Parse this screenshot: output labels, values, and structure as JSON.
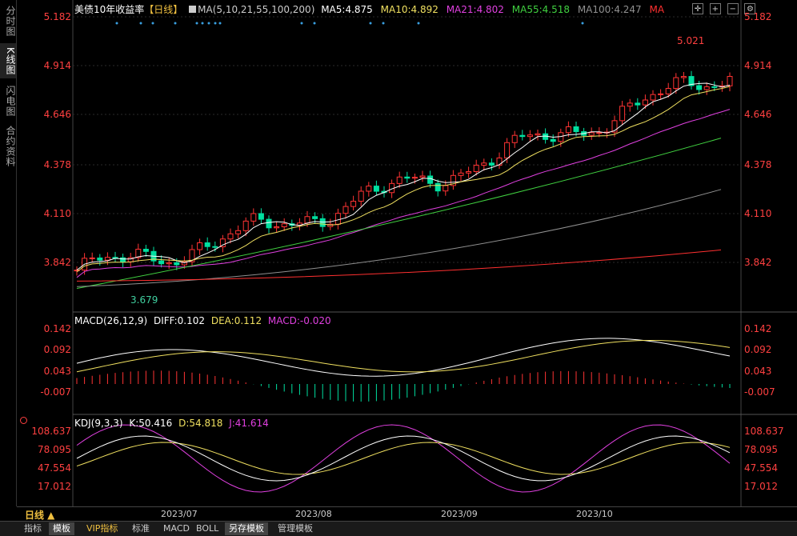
{
  "sidebar": {
    "items": [
      {
        "label": "分时图",
        "active": false
      },
      {
        "label": "K线图",
        "active": true
      },
      {
        "label": "闪电图",
        "active": false
      },
      {
        "label": "合约资料",
        "active": false
      }
    ]
  },
  "header": {
    "title": "美债10年收益率",
    "period_tag": "【日线】",
    "ma_params": "MA(5,10,21,55,100,200)",
    "ma5": "MA5:4.875",
    "ma10": "MA10:4.892",
    "ma21": "MA21:4.802",
    "ma55": "MA55:4.518",
    "ma100": "MA100:4.247",
    "ma200": "MA",
    "tool_icons": [
      "cross-icon",
      "zoom-in-icon",
      "zoom-out-icon",
      "settings-icon"
    ]
  },
  "price_axis": {
    "ticks_left": [
      "5.182",
      "4.914",
      "4.646",
      "4.378",
      "4.110",
      "3.842"
    ],
    "ticks_right": [
      "5.182",
      "4.914",
      "4.646",
      "4.378",
      "4.110",
      "3.842"
    ],
    "high_label": "5.021",
    "low_label": "3.679"
  },
  "macd": {
    "title": "MACD(26,12,9)",
    "diff": "DIFF:0.102",
    "dea": "DEA:0.112",
    "macd": "MACD:-0.020",
    "ticks_left": [
      "0.142",
      "0.092",
      "0.043",
      "-0.007"
    ],
    "ticks_right": [
      "0.142",
      "0.092",
      "0.043",
      "-0.007"
    ]
  },
  "kdj": {
    "title": "KDJ(9,3,3)",
    "k": "K:50.416",
    "d": "D:54.818",
    "j": "J:41.614",
    "ticks_left": [
      "108.637",
      "78.095",
      "47.554",
      "17.012"
    ],
    "ticks_right": [
      "108.637",
      "78.095",
      "47.554",
      "17.012"
    ]
  },
  "x_axis": {
    "labels": [
      "2023/07",
      "2023/08",
      "2023/09",
      "2023/10"
    ]
  },
  "period_label": "日线 ▲",
  "bottom_tabs": [
    {
      "label": "指标",
      "active": false
    },
    {
      "label": "模板",
      "active": true
    },
    {
      "label": "VIP指标",
      "active": false,
      "vip": true
    },
    {
      "label": "标准",
      "active": false
    },
    {
      "label": "MACD",
      "active": false
    },
    {
      "label": "BOLL",
      "active": false
    },
    {
      "label": "另存模板",
      "active": true
    },
    {
      "label": "管理模板",
      "active": false
    }
  ],
  "colors": {
    "up": "#ff3333",
    "down": "#00e0a0",
    "ma5": "#ffffff",
    "ma10": "#f0e060",
    "ma21": "#e040e0",
    "ma55": "#40d040",
    "ma100": "#909090",
    "ma200": "#ff3030"
  }
}
